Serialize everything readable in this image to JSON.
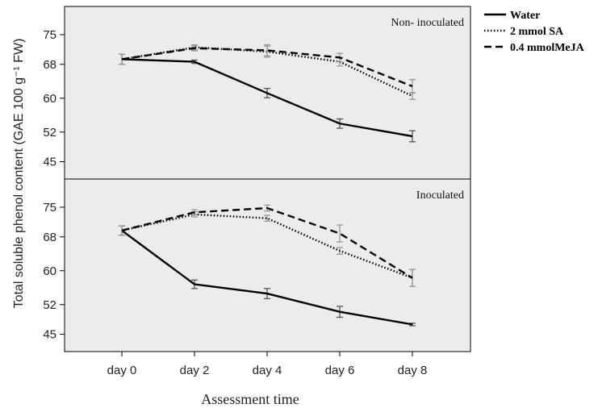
{
  "chart_data": {
    "type": "line",
    "xlabel": "Assessment time",
    "ylabel": "Total soluble phenol content (GAE 100 g⁻¹ FW)",
    "categories": [
      "day 0",
      "day 2",
      "day 4",
      "day 6",
      "day 8"
    ],
    "yticks": [
      45,
      52,
      60,
      68,
      75
    ],
    "ylim": [
      43,
      79
    ],
    "legend": {
      "placement": "outside-right-top"
    },
    "grid": false,
    "panel_background": "#ececec",
    "series_style": [
      {
        "name": "Water",
        "dash": "solid"
      },
      {
        "name": "2 mmol SA",
        "dash": "dotted"
      },
      {
        "name": "0.4 mmolMeJA",
        "dash": "dashed"
      }
    ],
    "panels": [
      {
        "label": "Non- inoculated",
        "series": [
          {
            "name": "Water",
            "values": [
              69.2,
              68.6,
              61.2,
              54.0,
              51.0
            ],
            "errors": [
              1.2,
              0.4,
              1.1,
              1.1,
              1.3
            ]
          },
          {
            "name": "2 mmol SA",
            "values": [
              69.2,
              72.0,
              71.0,
              68.6,
              60.5
            ],
            "errors": [
              1.2,
              0.6,
              1.3,
              1.0,
              0.8
            ]
          },
          {
            "name": "0.4 mmolMeJA",
            "values": [
              69.2,
              71.8,
              71.3,
              69.6,
              62.8
            ],
            "errors": [
              1.2,
              0.6,
              1.3,
              1.0,
              1.6
            ]
          }
        ]
      },
      {
        "label": "Inoculated",
        "series": [
          {
            "name": "Water",
            "values": [
              69.5,
              56.8,
              54.6,
              50.3,
              47.3
            ],
            "errors": [
              1.1,
              1.0,
              1.2,
              1.3,
              0.3
            ]
          },
          {
            "name": "2 mmol SA",
            "values": [
              69.5,
              73.3,
              72.4,
              64.7,
              58.3
            ],
            "errors": [
              1.1,
              0.6,
              0.7,
              0.8,
              2.0
            ]
          },
          {
            "name": "0.4 mmolMeJA",
            "values": [
              69.5,
              73.8,
              74.8,
              68.8,
              58.3
            ],
            "errors": [
              1.1,
              0.6,
              0.7,
              2.0,
              2.0
            ]
          }
        ]
      }
    ]
  }
}
